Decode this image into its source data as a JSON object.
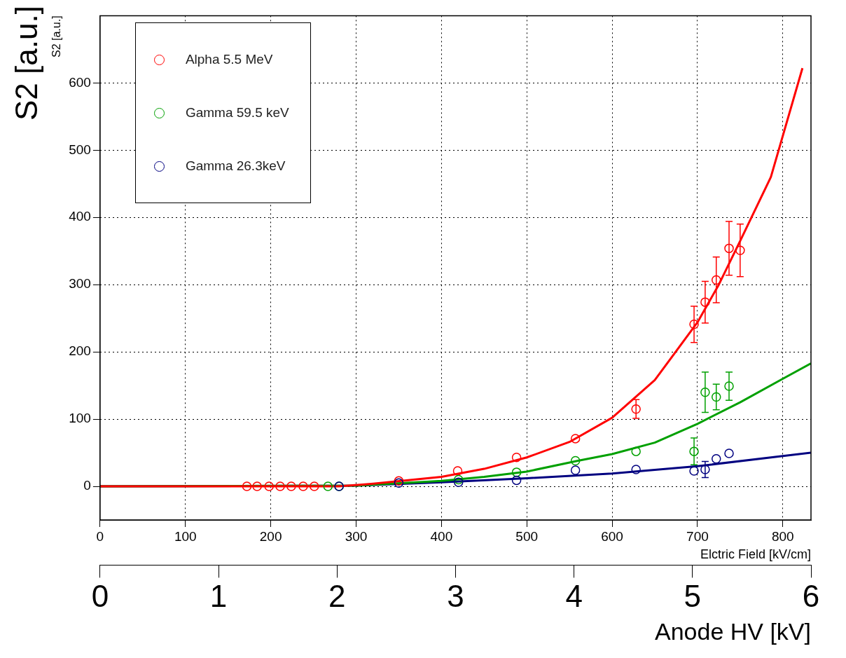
{
  "chart_data": {
    "type": "scatter",
    "xlabel": "Elctric Field [kV/cm]",
    "ylabel": "S2 [a.u.]",
    "x2label": "Anode HV [kV]",
    "annotations": [
      "S2 [a.u.]"
    ],
    "xlim": [
      0,
      833
    ],
    "xticks": [
      0,
      100,
      200,
      300,
      400,
      500,
      600,
      700,
      800
    ],
    "ylim": [
      -50,
      700
    ],
    "yticks": [
      0,
      100,
      200,
      300,
      400,
      500,
      600
    ],
    "x2lim": [
      0,
      6
    ],
    "x2ticks": [
      0,
      1,
      2,
      3,
      4,
      5,
      6
    ],
    "grid": true,
    "legend": "top left",
    "marker": "circle",
    "series": [
      {
        "name": "Alpha 5.5 MeV",
        "color": "#ff0000",
        "x": [
          172,
          184,
          198,
          211,
          224,
          238,
          251,
          350,
          419,
          488,
          557,
          628,
          696,
          709,
          722,
          737,
          750
        ],
        "values": [
          0,
          0,
          0,
          0,
          0,
          0,
          0,
          8,
          23,
          43,
          71,
          115,
          241,
          274,
          307,
          354,
          351
        ],
        "errors": [
          null,
          null,
          null,
          null,
          null,
          null,
          null,
          null,
          null,
          null,
          null,
          14,
          27,
          31,
          34,
          40,
          39
        ]
      },
      {
        "name": "Gamma 59.5 keV",
        "color": "#00a000",
        "x": [
          267,
          280,
          420,
          488,
          557,
          628,
          696,
          709,
          722,
          737
        ],
        "values": [
          0,
          0,
          10,
          21,
          38,
          52,
          52,
          140,
          133,
          149
        ],
        "errors": [
          null,
          null,
          null,
          null,
          null,
          null,
          20,
          30,
          19,
          21
        ]
      },
      {
        "name": "Gamma 26.3keV",
        "color": "#000080",
        "x": [
          280,
          350,
          420,
          488,
          557,
          628,
          696,
          709,
          722,
          737
        ],
        "values": [
          0,
          5,
          6,
          9,
          24,
          25,
          23,
          25,
          41,
          49
        ],
        "errors": [
          null,
          null,
          null,
          null,
          null,
          null,
          null,
          12,
          null,
          null
        ]
      },
      {
        "type": "line",
        "marker": "none",
        "color": "#ff0000",
        "x": [
          0,
          280,
          320,
          400,
          450,
          500,
          550,
          600,
          650,
          700,
          725,
          750,
          786,
          823
        ],
        "values": [
          0,
          0,
          4,
          14,
          26,
          43,
          66,
          102,
          158,
          244,
          300,
          365,
          460,
          622
        ]
      },
      {
        "type": "line",
        "marker": "none",
        "color": "#00a000",
        "x": [
          0,
          300,
          400,
          450,
          500,
          560,
          600,
          650,
          700,
          750,
          800,
          833
        ],
        "values": [
          0,
          1,
          8,
          14,
          22,
          38,
          48,
          65,
          93,
          125,
          160,
          183
        ]
      },
      {
        "type": "line",
        "marker": "none",
        "color": "#000080",
        "x": [
          0,
          300,
          400,
          500,
          600,
          700,
          800,
          833
        ],
        "values": [
          0,
          1,
          6,
          12,
          19,
          30,
          45,
          50
        ]
      }
    ]
  }
}
